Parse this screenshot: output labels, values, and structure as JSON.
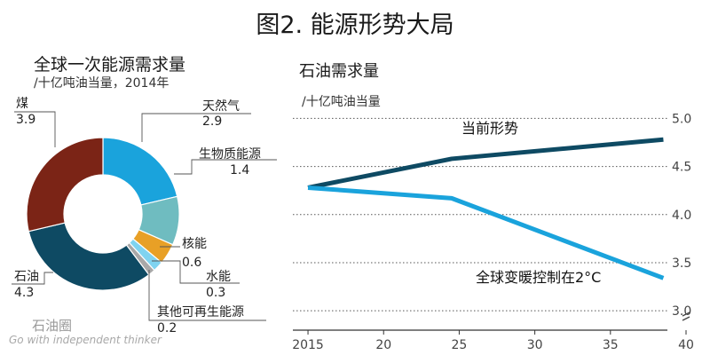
{
  "title": "图2. 能源形势大局",
  "watermark": {
    "cn": "石油圈",
    "en": "Go with independent thinker"
  },
  "chart_data": [
    {
      "type": "pie",
      "donut": true,
      "title": "全球一次能源需求量",
      "subtitle": "/十亿吨油当量，2014年",
      "slices": [
        {
          "label": "天然气",
          "value": 2.9,
          "display": "2.9",
          "color": "#1aa3dc"
        },
        {
          "label": "生物质能源",
          "value": 1.4,
          "display": "1.4",
          "color": "#6fbcc0"
        },
        {
          "label": "核能",
          "value": 0.6,
          "display": "0.6",
          "color": "#e8a026"
        },
        {
          "label": "水能",
          "value": 0.3,
          "display": "0.3",
          "color": "#7fd3f0"
        },
        {
          "label": "其他可再生能源",
          "value": 0.2,
          "display": "0.2",
          "color": "#a8a8a8"
        },
        {
          "label": "石油",
          "value": 4.3,
          "display": "4.3",
          "color": "#0e4a63"
        },
        {
          "label": "煤",
          "value": 3.9,
          "display": "3.9",
          "color": "#7b2416"
        }
      ]
    },
    {
      "type": "line",
      "title": "石油需求量",
      "ylabel": "/十亿吨油当量",
      "xlim": [
        2014,
        2040
      ],
      "ylim": [
        2.9,
        5.05
      ],
      "x_ticks": [
        "2015",
        "20",
        "25",
        "30",
        "35",
        "40"
      ],
      "y_ticks": [
        "5.0",
        "4.5",
        "4.0",
        "3.5",
        "3.0"
      ],
      "grid": true,
      "series": [
        {
          "name": "当前形势",
          "color": "#0e4a63",
          "points": [
            [
              2015,
              4.28
            ],
            [
              2024.5,
              4.58
            ],
            [
              2038.5,
              4.78
            ]
          ]
        },
        {
          "name": "全球变暖控制在2°C",
          "color": "#1aa3dc",
          "points": [
            [
              2015,
              4.28
            ],
            [
              2024.5,
              4.17
            ],
            [
              2038.5,
              3.34
            ]
          ]
        }
      ]
    }
  ]
}
